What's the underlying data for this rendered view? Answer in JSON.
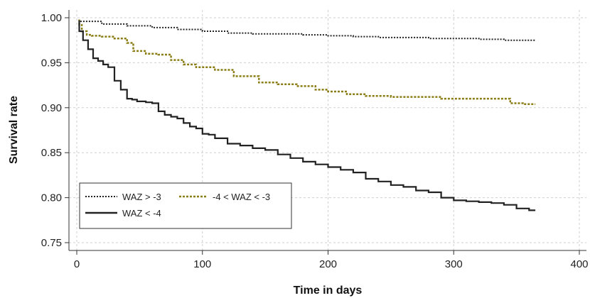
{
  "chart_data": {
    "type": "line",
    "xlabel": "Time in days",
    "ylabel": "Survival rate",
    "xlim": [
      0,
      400
    ],
    "ylim": [
      0.75,
      1.0
    ],
    "xticks": [
      0,
      100,
      200,
      300,
      400
    ],
    "yticks": [
      0.75,
      0.8,
      0.85,
      0.9,
      0.95,
      1.0
    ],
    "ytick_labels": [
      "0.75",
      "0.80",
      "0.85",
      "0.90",
      "0.95",
      "1.00"
    ],
    "xtick_labels": [
      "0",
      "100",
      "200",
      "300",
      "400"
    ],
    "grid": true,
    "legend_position": "bottom-left",
    "series": [
      {
        "name": "WAZ > -3",
        "color": "#222222",
        "style": "dotted",
        "x": [
          2,
          20,
          40,
          60,
          80,
          100,
          120,
          140,
          160,
          180,
          200,
          220,
          240,
          260,
          280,
          300,
          320,
          340,
          365
        ],
        "y": [
          0.998,
          0.996,
          0.993,
          0.991,
          0.989,
          0.987,
          0.985,
          0.983,
          0.982,
          0.982,
          0.981,
          0.98,
          0.979,
          0.978,
          0.978,
          0.977,
          0.977,
          0.976,
          0.975
        ]
      },
      {
        "name": "-4 < WAZ < -3",
        "color": "#8a7d14",
        "style": "dashed",
        "x": [
          2,
          4,
          8,
          12,
          20,
          30,
          40,
          45,
          55,
          65,
          75,
          85,
          95,
          110,
          125,
          145,
          160,
          175,
          190,
          200,
          215,
          230,
          250,
          270,
          290,
          300,
          320,
          345,
          355,
          365
        ],
        "y": [
          0.998,
          0.992,
          0.985,
          0.981,
          0.98,
          0.979,
          0.977,
          0.972,
          0.963,
          0.96,
          0.959,
          0.953,
          0.948,
          0.945,
          0.942,
          0.935,
          0.928,
          0.926,
          0.924,
          0.92,
          0.918,
          0.915,
          0.913,
          0.912,
          0.912,
          0.91,
          0.91,
          0.91,
          0.905,
          0.904
        ]
      },
      {
        "name": "WAZ < -4",
        "color": "#222222",
        "style": "solid",
        "x": [
          2,
          5,
          9,
          13,
          17,
          21,
          25,
          30,
          35,
          40,
          44,
          48,
          55,
          60,
          65,
          70,
          75,
          80,
          85,
          90,
          95,
          100,
          105,
          110,
          120,
          130,
          140,
          150,
          160,
          170,
          180,
          190,
          200,
          210,
          220,
          230,
          240,
          250,
          260,
          270,
          280,
          290,
          300,
          310,
          320,
          330,
          340,
          350,
          360,
          365
        ],
        "y": [
          0.997,
          0.985,
          0.975,
          0.965,
          0.955,
          0.952,
          0.948,
          0.945,
          0.93,
          0.92,
          0.91,
          0.909,
          0.907,
          0.906,
          0.905,
          0.896,
          0.892,
          0.89,
          0.888,
          0.883,
          0.879,
          0.877,
          0.871,
          0.87,
          0.866,
          0.86,
          0.858,
          0.855,
          0.853,
          0.848,
          0.844,
          0.84,
          0.837,
          0.834,
          0.831,
          0.828,
          0.821,
          0.818,
          0.814,
          0.812,
          0.808,
          0.806,
          0.8,
          0.797,
          0.796,
          0.795,
          0.794,
          0.792,
          0.788,
          0.786
        ]
      }
    ],
    "legend_order": [
      0,
      1,
      2
    ]
  }
}
